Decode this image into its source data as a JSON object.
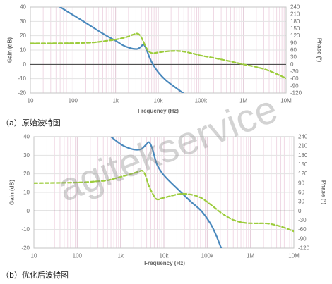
{
  "watermark": "agitekservice",
  "chart_data": [
    {
      "type": "line",
      "caption": "（a）原始波特图",
      "xlabel": "Frequency (Hz)",
      "ylabel": "Gain (dB)",
      "y2label": "Phase (°)",
      "x_scale": "log",
      "xlim": [
        10,
        10000000
      ],
      "ylim": [
        -20,
        40
      ],
      "y2lim": [
        -120,
        240
      ],
      "x_ticks": [
        10,
        100,
        1000,
        10000,
        100000,
        1000000,
        10000000
      ],
      "x_tick_labels": [
        "10",
        "100",
        "1k",
        "10k",
        "100k",
        "1M",
        "10M"
      ],
      "y_ticks": [
        40,
        30,
        20,
        10,
        0,
        -10,
        -20
      ],
      "y2_ticks": [
        240,
        210,
        180,
        150,
        120,
        90,
        60,
        30,
        0,
        -30,
        -60,
        -90,
        -120
      ],
      "grid": true,
      "series": [
        {
          "axis": "left",
          "line": "solid",
          "color": "#4a89bd",
          "x": [
            50,
            100,
            200,
            500,
            1000,
            1500,
            2000,
            2500,
            3200,
            3900,
            4500,
            5200,
            6200,
            7500,
            10000,
            15000,
            25000,
            38000
          ],
          "y": [
            40,
            34.5,
            29,
            21.5,
            16.5,
            13.3,
            11.8,
            11,
            10.8,
            12.2,
            14,
            11,
            5,
            0,
            -5.5,
            -11,
            -16,
            -20
          ]
        },
        {
          "axis": "right",
          "line": "dashed",
          "color": "#9ccc3c",
          "x": [
            10,
            100,
            300,
            700,
            1000,
            1700,
            2500,
            3200,
            3800,
            4500,
            5200,
            6500,
            8000,
            10000,
            20000,
            35000,
            60000,
            100000,
            200000,
            400000,
            1000000,
            2000000,
            4000000,
            10000000
          ],
          "y": [
            88,
            89,
            92,
            100,
            104,
            113,
            124,
            129,
            120,
            95,
            70,
            50,
            47,
            50,
            56,
            55,
            47,
            37,
            27,
            16,
            0,
            -11,
            -27,
            -58
          ]
        }
      ]
    },
    {
      "type": "line",
      "caption": "（b）优化后波特图",
      "xlabel": "Frequency (Hz)",
      "ylabel": "Gain (dB)",
      "y2label": "Phase (°)",
      "x_scale": "log",
      "xlim": [
        10,
        10000000
      ],
      "ylim": [
        -20,
        40
      ],
      "y2lim": [
        -120,
        240
      ],
      "x_ticks": [
        10,
        100,
        1000,
        10000,
        100000,
        1000000,
        10000000
      ],
      "x_tick_labels": [
        "10",
        "100",
        "1k",
        "10k",
        "100k",
        "1M",
        "10M"
      ],
      "y_ticks": [
        40,
        30,
        20,
        10,
        0,
        -10,
        -20
      ],
      "y2_ticks": [
        240,
        210,
        180,
        150,
        120,
        90,
        60,
        30,
        0,
        -30,
        -60,
        -90,
        -120
      ],
      "grid": true,
      "series": [
        {
          "axis": "left",
          "line": "solid",
          "color": "#4a89bd",
          "x": [
            600,
            1000,
            1500,
            2200,
            3000,
            3800,
            4600,
            5500,
            6800,
            9200,
            13500,
            24000,
            42000,
            73000,
            120000,
            160000,
            210000
          ],
          "y": [
            40,
            36,
            34,
            33,
            33.3,
            35.5,
            37,
            33,
            25.5,
            20.3,
            16,
            10.4,
            5,
            0,
            -7,
            -13,
            -20
          ]
        },
        {
          "axis": "right",
          "line": "dashed",
          "color": "#9ccc3c",
          "x": [
            10,
            100,
            300,
            500,
            1000,
            1700,
            2700,
            3200,
            3700,
            4400,
            5300,
            6800,
            9000,
            14000,
            24000,
            42000,
            73000,
            130000,
            230000,
            400000,
            700000,
            1200000,
            2600000,
            5500000,
            10000000
          ],
          "y": [
            90,
            92,
            96,
            99,
            110,
            119,
            128,
            130,
            117,
            85,
            60,
            38,
            41,
            48,
            55,
            53,
            42,
            17,
            -10,
            -29,
            -38,
            -40,
            -41,
            -52,
            -66
          ]
        }
      ]
    }
  ]
}
